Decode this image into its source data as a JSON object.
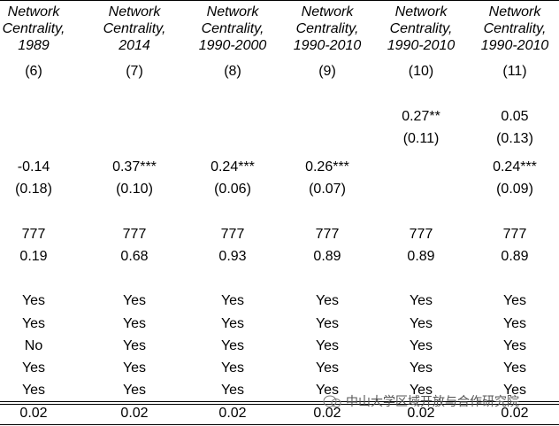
{
  "table": {
    "header": [
      [
        "Network",
        "Centrality,",
        "1989"
      ],
      [
        "Network",
        "Centrality,",
        "2014"
      ],
      [
        "Network",
        "Centrality,",
        "1990-2000"
      ],
      [
        "Network",
        "Centrality,",
        "1990-2010"
      ],
      [
        "Network",
        "Centrality,",
        "1990-2010"
      ],
      [
        "Network",
        "Centrality,",
        "1990-2010"
      ]
    ],
    "column_numbers": [
      "(6)",
      "(7)",
      "(8)",
      "(9)",
      "(10)",
      "(11)"
    ],
    "rows": [
      [
        null,
        null,
        null,
        null,
        "0.27**",
        "0.05"
      ],
      [
        null,
        null,
        null,
        null,
        "(0.11)",
        "(0.13)"
      ],
      [
        "-0.14",
        "0.37***",
        "0.24***",
        "0.26***",
        null,
        "0.24***"
      ],
      [
        "(0.18)",
        "(0.10)",
        "(0.06)",
        "(0.07)",
        null,
        "(0.09)"
      ],
      [
        "777",
        "777",
        "777",
        "777",
        "777",
        "777"
      ],
      [
        "0.19",
        "0.68",
        "0.93",
        "0.89",
        "0.89",
        "0.89"
      ],
      [
        "Yes",
        "Yes",
        "Yes",
        "Yes",
        "Yes",
        "Yes"
      ],
      [
        "Yes",
        "Yes",
        "Yes",
        "Yes",
        "Yes",
        "Yes"
      ],
      [
        "No",
        "Yes",
        "Yes",
        "Yes",
        "Yes",
        "Yes"
      ],
      [
        "Yes",
        "Yes",
        "Yes",
        "Yes",
        "Yes",
        "Yes"
      ],
      [
        "Yes",
        "Yes",
        "Yes",
        "Yes",
        "Yes",
        "Yes"
      ],
      [
        "0.02",
        "0.02",
        "0.02",
        "0.02",
        "0.02",
        "0.02"
      ]
    ],
    "watermark": "中山大学区域开放与合作研究院"
  }
}
